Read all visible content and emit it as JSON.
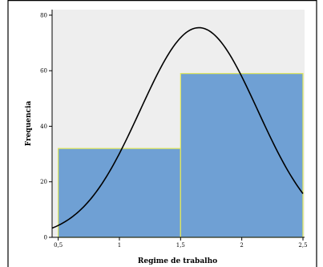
{
  "chart_data": {
    "type": "bar",
    "subtype": "histogram-with-normal-curve",
    "title": "",
    "xlabel": "Regime de trabalho",
    "ylabel": "Frequencia",
    "x_ticks": [
      "0,5",
      "1",
      "1,5",
      "2",
      "2,5"
    ],
    "x_tick_values": [
      0.5,
      1,
      1.5,
      2,
      2.5
    ],
    "y_ticks": [
      0,
      20,
      40,
      60,
      80
    ],
    "xlim": [
      0.45,
      2.5
    ],
    "ylim": [
      0,
      82
    ],
    "bins": [
      {
        "start": 0.5,
        "end": 1.5,
        "value": 32
      },
      {
        "start": 1.5,
        "end": 2.5,
        "value": 59
      }
    ],
    "normal_curve": {
      "mean": 1.65,
      "peak": 75.5,
      "sd": 0.48
    },
    "colors": {
      "bar_fill": "#6fa0d4",
      "bar_edge": "#e2e85a",
      "plot_background": "#eeeeee",
      "curve": "#000000"
    },
    "grid": false
  }
}
